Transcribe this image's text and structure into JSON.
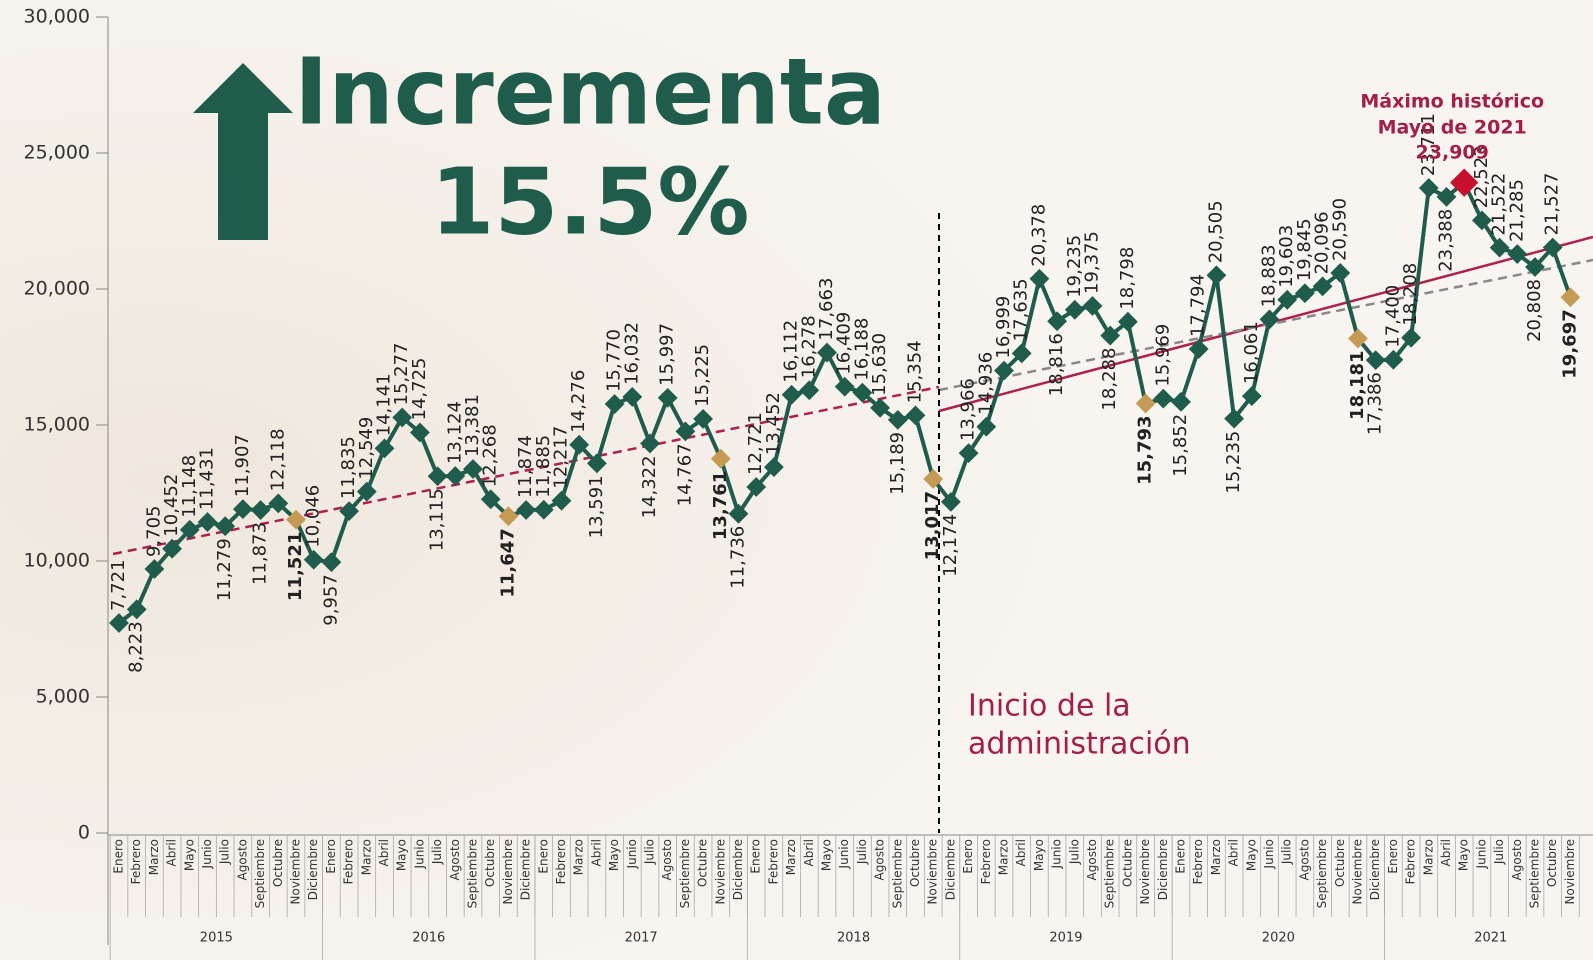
{
  "chart_data": {
    "type": "line",
    "headline": "Incrementa",
    "headline_value": "15.5%",
    "max_annotation": [
      "Máximo histórico",
      "Mayo de 2021"
    ],
    "admin_annotation": [
      "Inicio de la",
      "administración"
    ],
    "years": [
      "2015",
      "2016",
      "2017",
      "2018",
      "2019",
      "2020",
      "2021"
    ],
    "categories": [
      "Enero",
      "Febrero",
      "Marzo",
      "Abril",
      "Mayo",
      "Junio",
      "Julio",
      "Agosto",
      "Septiembre",
      "Octubre",
      "Noviembre",
      "Diciembre",
      "Enero",
      "Febrero",
      "Marzo",
      "Abril",
      "Mayo",
      "Junio",
      "Julio",
      "Agosto",
      "Septiembre",
      "Octubre",
      "Noviembre",
      "Diciembre",
      "Enero",
      "Febrero",
      "Marzo",
      "Abril",
      "Mayo",
      "Junio",
      "Julio",
      "Agosto",
      "Septiembre",
      "Octubre",
      "Noviembre",
      "Diciembre",
      "Enero",
      "Febrero",
      "Marzo",
      "Abril",
      "Mayo",
      "Junio",
      "Julio",
      "Agosto",
      "Septiembre",
      "Octubre",
      "Noviembre",
      "Diciembre",
      "Enero",
      "Febrero",
      "Marzo",
      "Abril",
      "Mayo",
      "Junio",
      "Julio",
      "Agosto",
      "Septiembre",
      "Octubre",
      "Noviembre",
      "Diciembre",
      "Enero",
      "Febrero",
      "Marzo",
      "Abril",
      "Mayo",
      "Junio",
      "Julio",
      "Agosto",
      "Septiembre",
      "Octubre",
      "Noviembre",
      "Diciembre",
      "Enero",
      "Febrero",
      "Marzo",
      "Abril",
      "Mayo",
      "Junio",
      "Julio",
      "Agosto",
      "Septiembre",
      "Octubre",
      "Noviembre"
    ],
    "values": [
      7721,
      8223,
      9705,
      10452,
      11148,
      11431,
      11279,
      11907,
      11873,
      12118,
      11521,
      10046,
      9957,
      11835,
      12549,
      14141,
      15277,
      14725,
      13115,
      13124,
      13381,
      12268,
      11647,
      11874,
      11885,
      12217,
      14276,
      13591,
      15770,
      16032,
      14322,
      15997,
      14767,
      15225,
      13761,
      11736,
      12721,
      13452,
      16112,
      16278,
      17663,
      16409,
      16188,
      15630,
      15189,
      15354,
      13017,
      12174,
      13966,
      14936,
      16999,
      17635,
      20378,
      18816,
      19235,
      19375,
      18288,
      18798,
      15793,
      15969,
      15852,
      17794,
      20505,
      15235,
      16061,
      18883,
      19603,
      19845,
      20096,
      20590,
      18181,
      17386,
      17400,
      18208,
      23711,
      23388,
      23909,
      22523,
      21522,
      21285,
      20808,
      21527,
      19697
    ],
    "value_labels": [
      "7,721",
      "8,223",
      "9,705",
      "10,452",
      "11,148",
      "11,431",
      "11,279",
      "11,907",
      "11,873",
      "12,118",
      "11,521",
      "10,046",
      "9,957",
      "11,835",
      "12,549",
      "14,141",
      "15,277",
      "14,725",
      "13,115",
      "13,124",
      "13,381",
      "12,268",
      "11,647",
      "11,874",
      "11,885",
      "12,217",
      "14,276",
      "13,591",
      "15,770",
      "16,032",
      "14,322",
      "15,997",
      "14,767",
      "15,225",
      "13,761",
      "11,736",
      "12,721",
      "13,452",
      "16,112",
      "16,278",
      "17,663",
      "16,409",
      "16,188",
      "15,630",
      "15,189",
      "15,354",
      "13,017",
      "12,174",
      "13,966",
      "14,936",
      "16,999",
      "17,635",
      "20,378",
      "18,816",
      "19,235",
      "19,375",
      "18,288",
      "18,798",
      "15,793",
      "15,969",
      "15,852",
      "17,794",
      "20,505",
      "15,235",
      "16,061",
      "18,883",
      "19,603",
      "19,845",
      "20,096",
      "20,590",
      "18,181",
      "17,386",
      "17,400",
      "18,208",
      "23,711",
      "23,388",
      "23,909",
      "22,523",
      "21,522",
      "21,285",
      "20,808",
      "21,527",
      "19,697"
    ],
    "color": "#1f5c4b",
    "highlight_month": "Noviembre",
    "highlight_color": "#c49a55",
    "max_color": "#c8102e",
    "ylim": [
      0,
      30000
    ],
    "yticks": [
      0,
      {
        "value": 5000,
        "label": "5,000"
      },
      {
        "value": 10000,
        "label": "10,000"
      },
      {
        "value": 15000,
        "label": "15,000"
      },
      {
        "value": 20000,
        "label": "20,000"
      },
      {
        "value": 25000,
        "label": "25,000"
      },
      {
        "value": 30000,
        "label": "30,000"
      }
    ]
  }
}
